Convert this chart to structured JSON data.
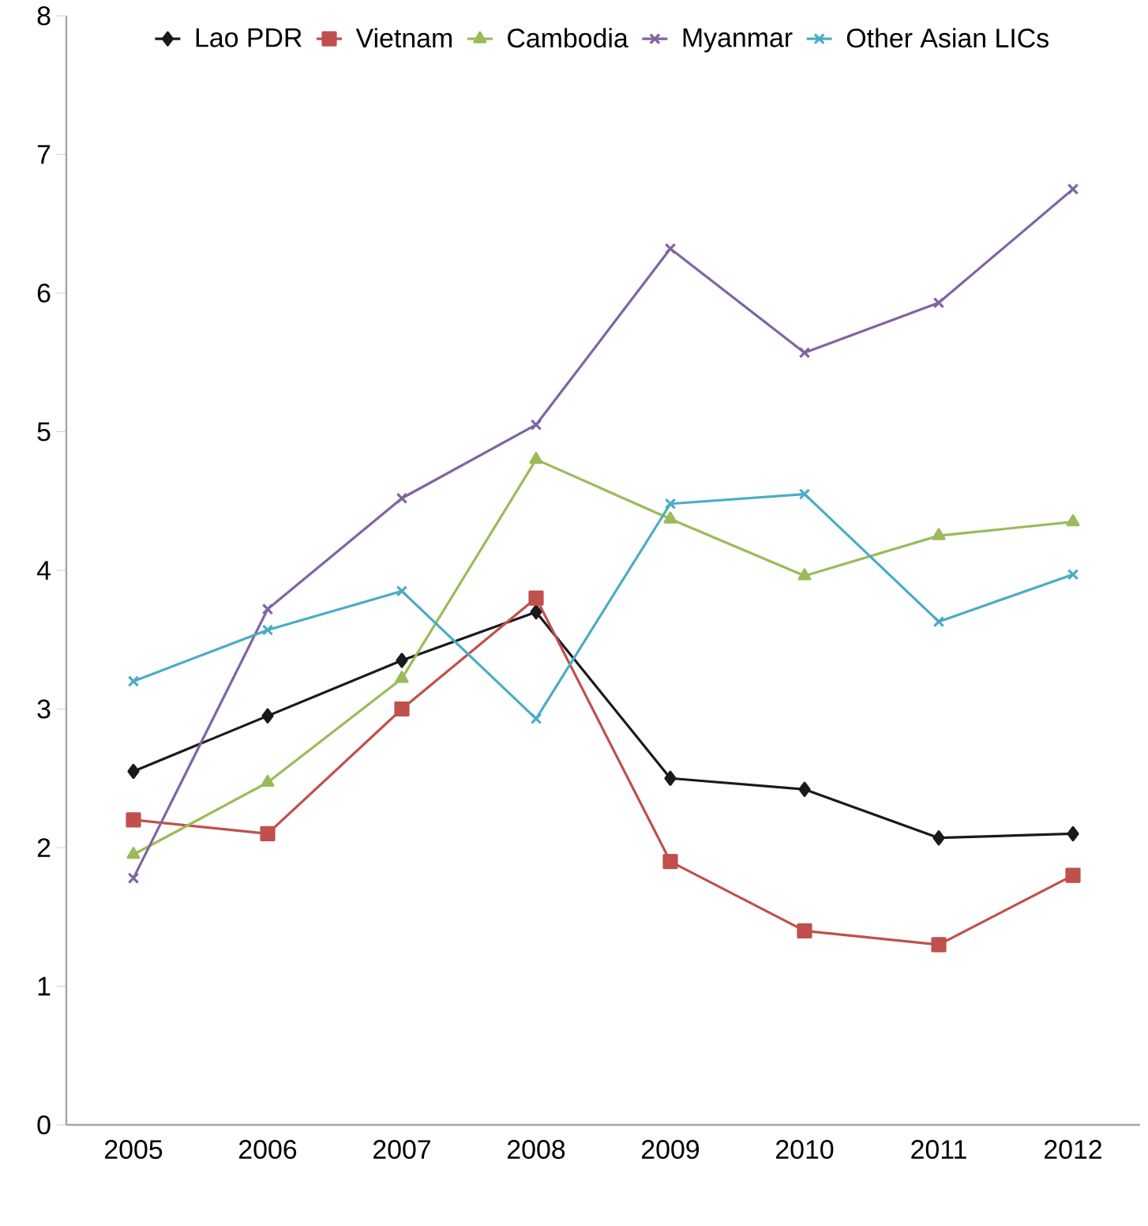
{
  "chart_data": {
    "type": "line",
    "categories": [
      "2005",
      "2006",
      "2007",
      "2008",
      "2009",
      "2010",
      "2011",
      "2012"
    ],
    "ylim": [
      0,
      8
    ],
    "yticks": [
      0,
      1,
      2,
      3,
      4,
      5,
      6,
      7,
      8
    ],
    "grid": false,
    "legend": "top",
    "line_style": "solid",
    "series": [
      {
        "name": "Lao PDR",
        "color": "#1a1a1a",
        "marker": "diamond",
        "values": [
          2.55,
          2.95,
          3.35,
          3.7,
          2.5,
          2.42,
          2.07,
          2.1
        ]
      },
      {
        "name": "Vietnam",
        "color": "#c0504d",
        "marker": "square",
        "values": [
          2.2,
          2.1,
          3.0,
          3.8,
          1.9,
          1.4,
          1.3,
          1.8
        ]
      },
      {
        "name": "Cambodia",
        "color": "#9bbb59",
        "marker": "triangle",
        "values": [
          1.95,
          2.47,
          3.22,
          4.8,
          4.37,
          3.96,
          4.25,
          4.35
        ]
      },
      {
        "name": "Myanmar",
        "color": "#8064a2",
        "marker": "cross",
        "values": [
          1.78,
          3.72,
          4.52,
          5.05,
          6.32,
          5.57,
          5.93,
          6.75
        ]
      },
      {
        "name": "Other Asian LICs",
        "color": "#4bacc6",
        "marker": "cross",
        "values": [
          3.2,
          3.57,
          3.85,
          2.93,
          4.48,
          4.55,
          3.63,
          3.97
        ]
      }
    ]
  }
}
